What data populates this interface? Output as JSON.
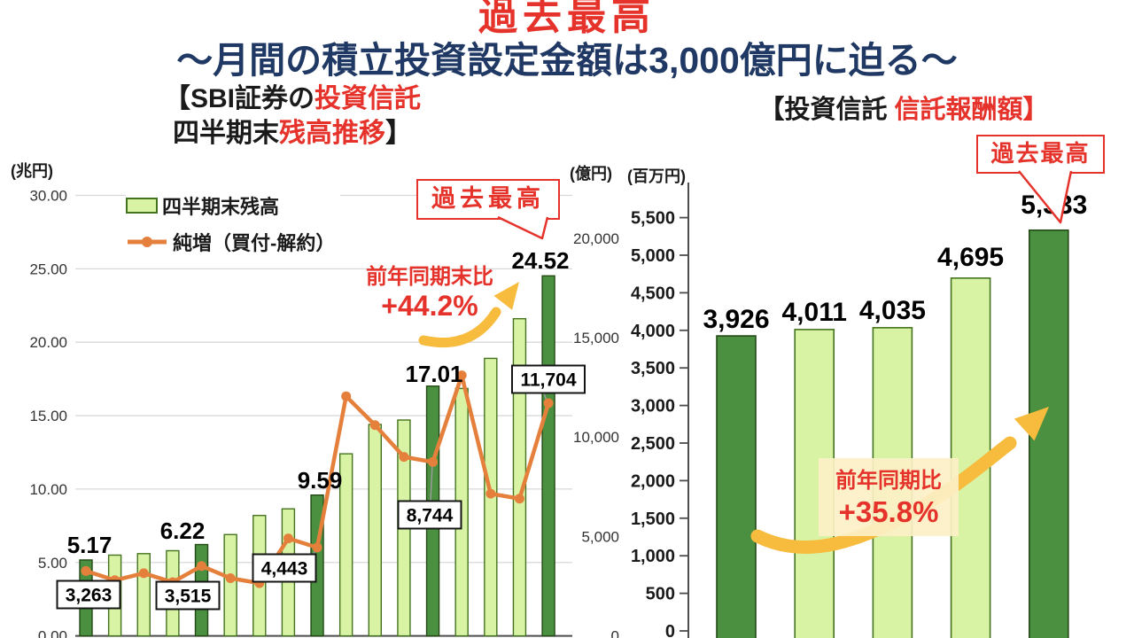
{
  "header": {
    "title": "過去最高",
    "subtitle": "～月間の積立投資設定金額は3,000億円に迫る～"
  },
  "left_chart": {
    "title": {
      "part1": "【SBI証券の",
      "part1_red": "投資信託",
      "part2": "四半期末",
      "part2_red": "残高推移",
      "part2_close": "】"
    },
    "unit_left_axis": "(兆円)",
    "unit_right_axis": "(億円)",
    "legend": {
      "bar_label": "四半期末残高",
      "line_label": "純増（買付-解約）"
    },
    "callout_record": "過去最高",
    "yoy_label": "前年同期末比",
    "yoy_value": "+44.2%"
  },
  "right_chart": {
    "title": {
      "part1": "【投資信託 ",
      "part1_red": "信託報酬額】"
    },
    "unit_axis": "(百万円)",
    "callout_record": "過去最高",
    "yoy_label": "前年同期比",
    "yoy_value": "+35.8%"
  },
  "chart_data": [
    {
      "id": "fund-balance-chart",
      "type": "bar+line",
      "title": "SBI証券の投資信託 四半期末残高推移",
      "x_axis_labels_visible": false,
      "bar_series": {
        "name": "四半期末残高",
        "unit": "兆円",
        "values": [
          5.17,
          5.5,
          5.6,
          5.8,
          6.22,
          6.9,
          8.2,
          8.65,
          9.59,
          12.4,
          14.4,
          14.7,
          17.01,
          16.85,
          18.9,
          21.6,
          24.52
        ],
        "highlighted_indices": [
          0,
          4,
          8,
          12,
          16
        ]
      },
      "line_series": {
        "name": "純増（買付-解約）",
        "unit": "億円",
        "values": [
          3263,
          2800,
          3150,
          2700,
          3515,
          2900,
          2650,
          4900,
          4443,
          12050,
          10600,
          9000,
          8744,
          13100,
          7150,
          6900,
          11704
        ]
      },
      "bar_point_labels": [
        {
          "index": 0,
          "text": "5.17"
        },
        {
          "index": 4,
          "text": "6.22"
        },
        {
          "index": 8,
          "text": "9.59"
        },
        {
          "index": 12,
          "text": "17.01"
        },
        {
          "index": 16,
          "text": "24.52"
        }
      ],
      "line_point_labels": [
        {
          "index": 0,
          "text": "3,263"
        },
        {
          "index": 4,
          "text": "3,515"
        },
        {
          "index": 8,
          "text": "4,443"
        },
        {
          "index": 12,
          "text": "8,744"
        },
        {
          "index": 16,
          "text": "11,704"
        }
      ],
      "y_left_axis": {
        "unit": "兆円",
        "range": [
          0,
          30
        ],
        "ticks": [
          {
            "value": 30,
            "label": "30.00"
          },
          {
            "value": 25,
            "label": "25.00"
          },
          {
            "value": 20,
            "label": "20.00"
          },
          {
            "value": 15,
            "label": "15.00"
          },
          {
            "value": 10,
            "label": "10.00"
          },
          {
            "value": 5,
            "label": "5.00"
          },
          {
            "value": 0,
            "label": "0.00"
          }
        ]
      },
      "y_right_axis": {
        "unit": "億円",
        "range": [
          0,
          22000
        ],
        "ticks": [
          {
            "value": 20000,
            "label": "20,000"
          },
          {
            "value": 15000,
            "label": "15,000"
          },
          {
            "value": 10000,
            "label": "10,000"
          },
          {
            "value": 5000,
            "label": "5,000"
          },
          {
            "value": 0,
            "label": "0"
          }
        ]
      },
      "grid": true,
      "legend_position": "top-left"
    },
    {
      "id": "trust-fee-chart",
      "type": "bar",
      "title": "投資信託 信託報酬額",
      "x_axis_labels_visible": false,
      "values": [
        3926,
        4011,
        4035,
        4695,
        5333
      ],
      "value_labels": [
        "3,926",
        "4,011",
        "4,035",
        "4,695",
        "5,333"
      ],
      "highlighted_indices": [
        0,
        4
      ],
      "y_axis": {
        "unit": "百万円",
        "range": [
          0,
          5950
        ],
        "ticks": [
          {
            "value": 5500,
            "label": "5,500"
          },
          {
            "value": 5000,
            "label": "5,000"
          },
          {
            "value": 4500,
            "label": "4,500"
          },
          {
            "value": 4000,
            "label": "4,000"
          },
          {
            "value": 3500,
            "label": "3,500"
          },
          {
            "value": 3000,
            "label": "3,000"
          },
          {
            "value": 2500,
            "label": "2,500"
          },
          {
            "value": 2000,
            "label": "2,000"
          },
          {
            "value": 1500,
            "label": "1,500"
          },
          {
            "value": 1000,
            "label": "1,000"
          },
          {
            "value": 500,
            "label": "500"
          },
          {
            "value": 0,
            "label": "0"
          }
        ]
      },
      "grid": false
    }
  ],
  "colors": {
    "red": "#e5332b",
    "navy": "#1f3864",
    "bar_light": "#d9f3a5",
    "bar_light_border": "#44731f",
    "bar_dark": "#4b9040",
    "bar_dark_border": "#234a15",
    "line": "#e5803c",
    "grid": "#d9d9d9",
    "axis": "#4d4d4d",
    "arrow_yellow": "#f7bb3d",
    "highlight_bg": "#fcf0c6",
    "label_box_border": "#141414"
  }
}
